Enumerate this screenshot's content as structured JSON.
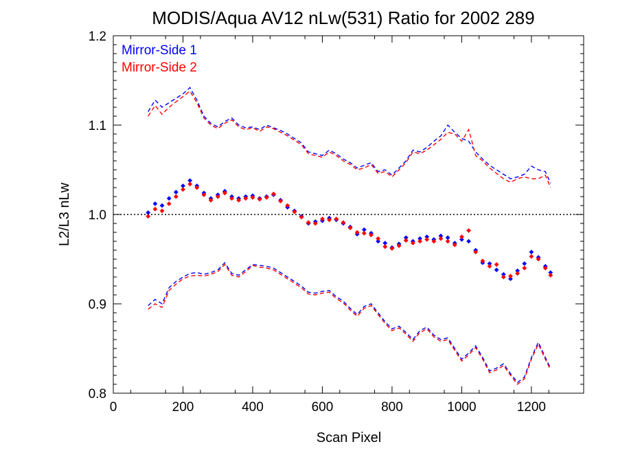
{
  "chart_data": {
    "type": "line",
    "title": "MODIS/Aqua AV12 nLw(531) Ratio for 2002 289",
    "xlabel": "Scan Pixel",
    "ylabel": "L2/L3 nLw",
    "xlim": [
      0,
      1350
    ],
    "ylim": [
      0.8,
      1.2
    ],
    "x_ticks": [
      "0",
      "200",
      "400",
      "600",
      "800",
      "1000",
      "1200"
    ],
    "y_ticks": [
      "0.8",
      "0.9",
      "1.0",
      "1.1",
      "1.2"
    ],
    "reference_line": {
      "y": 1.0,
      "style": "dotted"
    },
    "legend_position": "top-left",
    "colors": {
      "mirror_side_1": "#0000ff",
      "mirror_side_2": "#ff0000"
    },
    "series": [
      {
        "name": "Mirror-Side 1",
        "color": "#0000ff",
        "x": [
          100,
          120,
          140,
          160,
          180,
          200,
          220,
          240,
          260,
          280,
          300,
          320,
          340,
          360,
          380,
          400,
          420,
          440,
          460,
          480,
          500,
          520,
          540,
          560,
          580,
          600,
          620,
          640,
          660,
          680,
          700,
          720,
          740,
          760,
          780,
          800,
          820,
          840,
          860,
          880,
          900,
          920,
          940,
          960,
          980,
          1000,
          1020,
          1040,
          1060,
          1080,
          1100,
          1120,
          1140,
          1160,
          1180,
          1200,
          1220,
          1240,
          1255
        ],
        "ratio": [
          1.002,
          1.012,
          1.01,
          1.018,
          1.025,
          1.032,
          1.038,
          1.032,
          1.024,
          1.018,
          1.022,
          1.026,
          1.02,
          1.018,
          1.02,
          1.021,
          1.018,
          1.02,
          1.022,
          1.016,
          1.008,
          1.004,
          0.998,
          0.99,
          0.992,
          0.993,
          0.996,
          0.994,
          0.99,
          0.986,
          0.978,
          0.983,
          0.979,
          0.97,
          0.968,
          0.963,
          0.967,
          0.974,
          0.97,
          0.973,
          0.975,
          0.972,
          0.976,
          0.974,
          0.968,
          0.972,
          0.97,
          0.96,
          0.946,
          0.945,
          0.938,
          0.933,
          0.928,
          0.937,
          0.945,
          0.958,
          0.952,
          0.942,
          0.935
        ],
        "upper_bound": [
          1.115,
          1.128,
          1.12,
          1.125,
          1.13,
          1.135,
          1.142,
          1.128,
          1.11,
          1.102,
          1.098,
          1.104,
          1.108,
          1.1,
          1.097,
          1.098,
          1.095,
          1.1,
          1.097,
          1.094,
          1.09,
          1.085,
          1.08,
          1.07,
          1.068,
          1.066,
          1.072,
          1.068,
          1.062,
          1.058,
          1.052,
          1.055,
          1.058,
          1.048,
          1.05,
          1.044,
          1.052,
          1.06,
          1.072,
          1.07,
          1.075,
          1.082,
          1.088,
          1.1,
          1.092,
          1.085,
          1.082,
          1.07,
          1.062,
          1.055,
          1.05,
          1.045,
          1.04,
          1.042,
          1.045,
          1.054,
          1.05,
          1.048,
          1.035
        ],
        "lower_bound": [
          0.898,
          0.905,
          0.9,
          0.918,
          0.925,
          0.93,
          0.934,
          0.935,
          0.933,
          0.935,
          0.938,
          0.946,
          0.934,
          0.932,
          0.938,
          0.944,
          0.943,
          0.942,
          0.94,
          0.935,
          0.93,
          0.925,
          0.92,
          0.913,
          0.912,
          0.914,
          0.915,
          0.908,
          0.903,
          0.895,
          0.888,
          0.897,
          0.9,
          0.89,
          0.88,
          0.872,
          0.875,
          0.868,
          0.86,
          0.87,
          0.874,
          0.865,
          0.86,
          0.862,
          0.85,
          0.838,
          0.845,
          0.853,
          0.84,
          0.825,
          0.828,
          0.833,
          0.822,
          0.812,
          0.818,
          0.84,
          0.857,
          0.84,
          0.828
        ]
      },
      {
        "name": "Mirror-Side 2",
        "color": "#ff0000",
        "x": [
          100,
          120,
          140,
          160,
          180,
          200,
          220,
          240,
          260,
          280,
          300,
          320,
          340,
          360,
          380,
          400,
          420,
          440,
          460,
          480,
          500,
          520,
          540,
          560,
          580,
          600,
          620,
          640,
          660,
          680,
          700,
          720,
          740,
          760,
          780,
          800,
          820,
          840,
          860,
          880,
          900,
          920,
          940,
          960,
          980,
          1000,
          1020,
          1040,
          1060,
          1080,
          1100,
          1120,
          1140,
          1160,
          1180,
          1200,
          1220,
          1240,
          1255
        ],
        "ratio": [
          0.998,
          1.006,
          1.004,
          1.012,
          1.02,
          1.028,
          1.034,
          1.03,
          1.022,
          1.016,
          1.02,
          1.024,
          1.018,
          1.016,
          1.018,
          1.019,
          1.017,
          1.019,
          1.023,
          1.015,
          1.01,
          1.003,
          0.997,
          0.991,
          0.99,
          0.995,
          0.994,
          0.995,
          0.991,
          0.985,
          0.98,
          0.979,
          0.977,
          0.973,
          0.964,
          0.962,
          0.965,
          0.971,
          0.968,
          0.97,
          0.972,
          0.97,
          0.973,
          0.97,
          0.966,
          0.975,
          0.982,
          0.958,
          0.948,
          0.942,
          0.944,
          0.93,
          0.931,
          0.934,
          0.94,
          0.953,
          0.95,
          0.94,
          0.932
        ],
        "upper_bound": [
          1.11,
          1.122,
          1.112,
          1.12,
          1.126,
          1.132,
          1.138,
          1.125,
          1.108,
          1.1,
          1.096,
          1.102,
          1.106,
          1.098,
          1.095,
          1.097,
          1.093,
          1.098,
          1.096,
          1.092,
          1.088,
          1.083,
          1.078,
          1.068,
          1.066,
          1.064,
          1.07,
          1.066,
          1.06,
          1.056,
          1.05,
          1.052,
          1.056,
          1.046,
          1.048,
          1.042,
          1.05,
          1.058,
          1.07,
          1.068,
          1.072,
          1.078,
          1.084,
          1.092,
          1.09,
          1.082,
          1.095,
          1.066,
          1.06,
          1.052,
          1.046,
          1.04,
          1.036,
          1.04,
          1.042,
          1.04,
          1.04,
          1.044,
          1.03
        ],
        "lower_bound": [
          0.894,
          0.9,
          0.896,
          0.915,
          0.922,
          0.928,
          0.931,
          0.932,
          0.931,
          0.933,
          0.936,
          0.944,
          0.932,
          0.93,
          0.936,
          0.943,
          0.941,
          0.94,
          0.938,
          0.933,
          0.928,
          0.923,
          0.918,
          0.911,
          0.91,
          0.912,
          0.913,
          0.906,
          0.901,
          0.893,
          0.886,
          0.895,
          0.898,
          0.888,
          0.878,
          0.87,
          0.873,
          0.866,
          0.858,
          0.868,
          0.872,
          0.863,
          0.858,
          0.86,
          0.848,
          0.836,
          0.843,
          0.851,
          0.838,
          0.823,
          0.826,
          0.831,
          0.82,
          0.81,
          0.816,
          0.838,
          0.855,
          0.838,
          0.826
        ]
      }
    ]
  }
}
